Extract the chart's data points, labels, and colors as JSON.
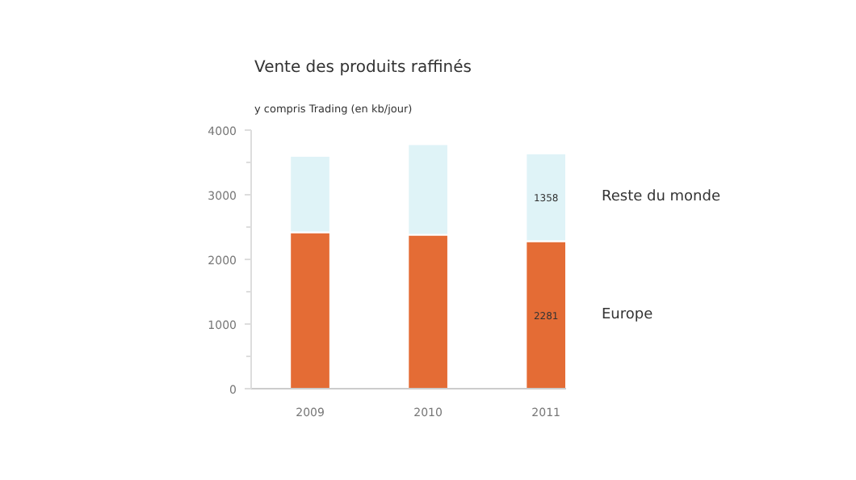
{
  "chart_data": {
    "type": "bar",
    "title": "Vente des produits raffinés",
    "subtitle": "y compris Trading (en kb/jour)",
    "categories": [
      "2009",
      "2010",
      "2011"
    ],
    "stacked": true,
    "ylim": [
      0,
      4000
    ],
    "yticks": [
      0,
      {
        "value": 500,
        "label": null
      },
      1000,
      {
        "value": 1500,
        "label": null
      },
      2000,
      {
        "value": 2500,
        "label": null
      },
      3000,
      {
        "value": 3500,
        "label": null
      },
      4000
    ],
    "series": [
      {
        "name": "Europe",
        "color": "#e46c35",
        "values": [
          2420,
          2380,
          2281
        ],
        "value_labels": [
          null,
          null,
          "2281"
        ]
      },
      {
        "name": "Reste du monde",
        "color": "#dff3f7",
        "values": [
          1180,
          1400,
          1358
        ],
        "value_labels": [
          null,
          null,
          "1358"
        ]
      }
    ],
    "grid": false,
    "legend": false
  }
}
